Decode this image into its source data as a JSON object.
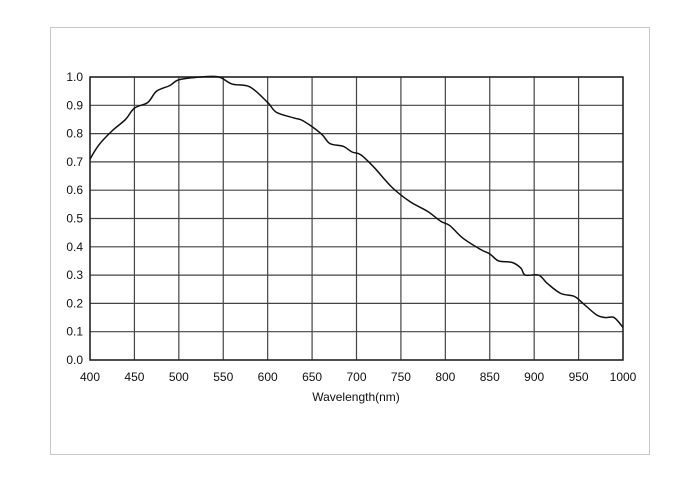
{
  "chart_data": {
    "type": "line",
    "title": "",
    "xlabel": "Wavelength(nm)",
    "ylabel": "",
    "xlim": [
      400,
      1000
    ],
    "ylim": [
      0,
      1.0
    ],
    "grid": true,
    "xticks": [
      "400",
      "450",
      "500",
      "550",
      "600",
      "650",
      "700",
      "750",
      "800",
      "850",
      "900",
      "950",
      "1000"
    ],
    "yticks": [
      "0.0",
      "0.1",
      "0.2",
      "0.3",
      "0.4",
      "0.5",
      "0.6",
      "0.7",
      "0.8",
      "0.9",
      "1.0"
    ],
    "series": [
      {
        "x": [
          400,
          410,
          425,
          440,
          450,
          465,
          475,
          490,
          500,
          525,
          545,
          560,
          580,
          600,
          610,
          630,
          640,
          660,
          670,
          685,
          695,
          705,
          720,
          740,
          760,
          780,
          795,
          805,
          820,
          840,
          850,
          860,
          875,
          885,
          890,
          905,
          915,
          930,
          945,
          955,
          970,
          980,
          990,
          1000
        ],
        "y": [
          0.71,
          0.76,
          0.81,
          0.85,
          0.89,
          0.91,
          0.95,
          0.97,
          0.99,
          1.0,
          1.0,
          0.975,
          0.965,
          0.91,
          0.875,
          0.855,
          0.845,
          0.8,
          0.765,
          0.755,
          0.735,
          0.725,
          0.68,
          0.61,
          0.56,
          0.525,
          0.49,
          0.475,
          0.43,
          0.39,
          0.375,
          0.35,
          0.345,
          0.325,
          0.3,
          0.3,
          0.27,
          0.235,
          0.225,
          0.2,
          0.16,
          0.15,
          0.15,
          0.115
        ]
      }
    ]
  }
}
